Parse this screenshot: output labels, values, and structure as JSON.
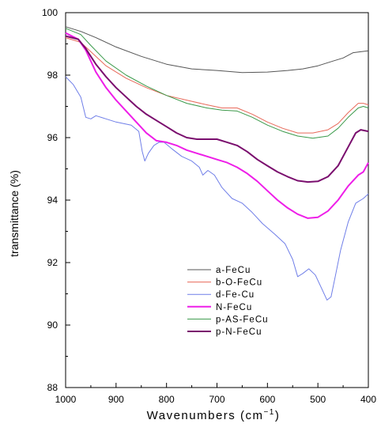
{
  "chart_data": {
    "type": "line",
    "title": "",
    "xlabel": "Wavenumbers (cm",
    "xlabel_sup": "−1",
    "xlabel_tail": ")",
    "ylabel": "transmittance (%)",
    "xlim": [
      1000,
      400
    ],
    "ylim": [
      88,
      100
    ],
    "x_ticks": [
      1000,
      900,
      800,
      700,
      600,
      500,
      400
    ],
    "y_ticks": [
      88,
      90,
      92,
      94,
      96,
      98,
      100
    ],
    "legend_position": "lower-center",
    "grid": false,
    "series": [
      {
        "name": "a-FeCu",
        "color": "#555555",
        "points": [
          [
            1000,
            99.55
          ],
          [
            970,
            99.4
          ],
          [
            940,
            99.2
          ],
          [
            900,
            98.9
          ],
          [
            850,
            98.6
          ],
          [
            800,
            98.35
          ],
          [
            750,
            98.2
          ],
          [
            700,
            98.15
          ],
          [
            650,
            98.08
          ],
          [
            600,
            98.1
          ],
          [
            560,
            98.15
          ],
          [
            530,
            98.2
          ],
          [
            500,
            98.3
          ],
          [
            470,
            98.45
          ],
          [
            450,
            98.55
          ],
          [
            430,
            98.72
          ],
          [
            415,
            98.75
          ],
          [
            400,
            98.78
          ]
        ]
      },
      {
        "name": "b-O-FeCu",
        "color": "#e8695a",
        "points": [
          [
            1000,
            99.2
          ],
          [
            970,
            99.05
          ],
          [
            950,
            98.75
          ],
          [
            920,
            98.3
          ],
          [
            880,
            97.9
          ],
          [
            840,
            97.6
          ],
          [
            800,
            97.35
          ],
          [
            760,
            97.2
          ],
          [
            720,
            97.05
          ],
          [
            690,
            96.95
          ],
          [
            660,
            96.95
          ],
          [
            630,
            96.75
          ],
          [
            600,
            96.5
          ],
          [
            570,
            96.3
          ],
          [
            540,
            96.15
          ],
          [
            510,
            96.15
          ],
          [
            480,
            96.25
          ],
          [
            460,
            96.45
          ],
          [
            440,
            96.8
          ],
          [
            420,
            97.1
          ],
          [
            410,
            97.1
          ],
          [
            400,
            97.05
          ]
        ]
      },
      {
        "name": "d-Fe-Cu",
        "color": "#6f7ee8",
        "points": [
          [
            1000,
            97.95
          ],
          [
            985,
            97.7
          ],
          [
            970,
            97.3
          ],
          [
            960,
            96.65
          ],
          [
            950,
            96.6
          ],
          [
            940,
            96.7
          ],
          [
            920,
            96.6
          ],
          [
            900,
            96.5
          ],
          [
            870,
            96.4
          ],
          [
            855,
            96.2
          ],
          [
            848,
            95.55
          ],
          [
            843,
            95.25
          ],
          [
            836,
            95.5
          ],
          [
            825,
            95.75
          ],
          [
            815,
            95.85
          ],
          [
            805,
            95.85
          ],
          [
            790,
            95.65
          ],
          [
            770,
            95.4
          ],
          [
            750,
            95.25
          ],
          [
            735,
            95.05
          ],
          [
            728,
            94.8
          ],
          [
            718,
            94.95
          ],
          [
            705,
            94.8
          ],
          [
            690,
            94.4
          ],
          [
            670,
            94.05
          ],
          [
            650,
            93.9
          ],
          [
            630,
            93.6
          ],
          [
            610,
            93.25
          ],
          [
            585,
            92.9
          ],
          [
            565,
            92.6
          ],
          [
            550,
            92.1
          ],
          [
            540,
            91.55
          ],
          [
            530,
            91.65
          ],
          [
            518,
            91.8
          ],
          [
            505,
            91.6
          ],
          [
            492,
            91.15
          ],
          [
            482,
            90.8
          ],
          [
            474,
            90.9
          ],
          [
            465,
            91.6
          ],
          [
            455,
            92.4
          ],
          [
            440,
            93.3
          ],
          [
            425,
            93.9
          ],
          [
            410,
            94.05
          ],
          [
            400,
            94.2
          ]
        ]
      },
      {
        "name": "N-FeCu",
        "color": "#ee1ee8",
        "points": [
          [
            1000,
            99.35
          ],
          [
            975,
            99.15
          ],
          [
            960,
            98.8
          ],
          [
            940,
            98.1
          ],
          [
            920,
            97.6
          ],
          [
            900,
            97.2
          ],
          [
            880,
            96.85
          ],
          [
            860,
            96.5
          ],
          [
            840,
            96.15
          ],
          [
            820,
            95.9
          ],
          [
            800,
            95.85
          ],
          [
            780,
            95.75
          ],
          [
            760,
            95.6
          ],
          [
            740,
            95.5
          ],
          [
            720,
            95.4
          ],
          [
            700,
            95.3
          ],
          [
            680,
            95.2
          ],
          [
            660,
            95.05
          ],
          [
            640,
            94.85
          ],
          [
            620,
            94.6
          ],
          [
            600,
            94.3
          ],
          [
            580,
            94.0
          ],
          [
            560,
            93.75
          ],
          [
            540,
            93.55
          ],
          [
            520,
            93.42
          ],
          [
            500,
            93.45
          ],
          [
            480,
            93.65
          ],
          [
            460,
            94.0
          ],
          [
            440,
            94.45
          ],
          [
            420,
            94.8
          ],
          [
            410,
            94.9
          ],
          [
            400,
            95.2
          ]
        ]
      },
      {
        "name": "p-AS-FeCu",
        "color": "#3a9a4a",
        "points": [
          [
            1000,
            99.5
          ],
          [
            970,
            99.3
          ],
          [
            950,
            98.95
          ],
          [
            920,
            98.45
          ],
          [
            880,
            98.0
          ],
          [
            840,
            97.65
          ],
          [
            800,
            97.35
          ],
          [
            760,
            97.1
          ],
          [
            720,
            96.95
          ],
          [
            690,
            96.88
          ],
          [
            660,
            96.85
          ],
          [
            630,
            96.65
          ],
          [
            600,
            96.4
          ],
          [
            570,
            96.2
          ],
          [
            540,
            96.05
          ],
          [
            510,
            95.98
          ],
          [
            480,
            96.05
          ],
          [
            460,
            96.3
          ],
          [
            440,
            96.65
          ],
          [
            420,
            96.95
          ],
          [
            410,
            97.0
          ],
          [
            400,
            96.95
          ]
        ]
      },
      {
        "name": "p-N-FeCu",
        "color": "#7a0e6e",
        "points": [
          [
            1000,
            99.25
          ],
          [
            975,
            99.15
          ],
          [
            960,
            98.85
          ],
          [
            940,
            98.35
          ],
          [
            920,
            97.95
          ],
          [
            900,
            97.6
          ],
          [
            880,
            97.3
          ],
          [
            860,
            97.0
          ],
          [
            840,
            96.75
          ],
          [
            820,
            96.55
          ],
          [
            800,
            96.35
          ],
          [
            780,
            96.15
          ],
          [
            760,
            96.0
          ],
          [
            740,
            95.95
          ],
          [
            720,
            95.95
          ],
          [
            700,
            95.95
          ],
          [
            680,
            95.85
          ],
          [
            660,
            95.75
          ],
          [
            640,
            95.55
          ],
          [
            620,
            95.3
          ],
          [
            600,
            95.1
          ],
          [
            580,
            94.9
          ],
          [
            560,
            94.75
          ],
          [
            540,
            94.62
          ],
          [
            520,
            94.58
          ],
          [
            500,
            94.6
          ],
          [
            480,
            94.75
          ],
          [
            460,
            95.1
          ],
          [
            440,
            95.7
          ],
          [
            425,
            96.15
          ],
          [
            415,
            96.25
          ],
          [
            400,
            96.2
          ]
        ]
      }
    ]
  }
}
